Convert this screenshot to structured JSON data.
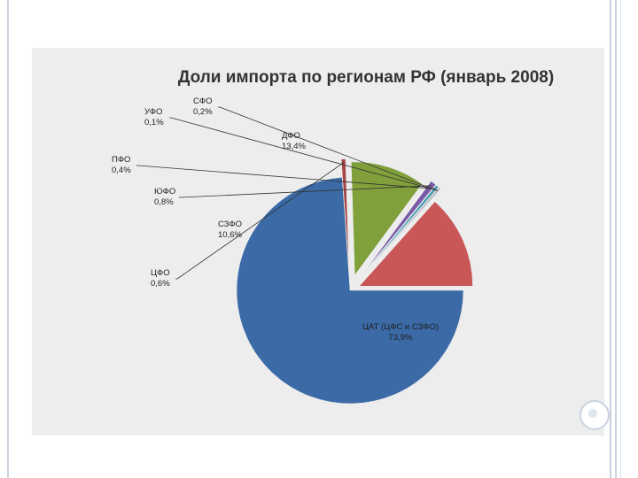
{
  "chart_data": {
    "type": "pie",
    "title": "Доли импорта по регионам РФ (январь 2008)",
    "slices": [
      {
        "label": "ЦАТ (ЦФС и СЗФО)",
        "value_text": "73,9%",
        "value": 73.9,
        "color": "#3b6aa6"
      },
      {
        "label": "ЦФО",
        "value_text": "0,6%",
        "value": 0.6,
        "color": "#a64545"
      },
      {
        "label": "СЗФО",
        "value_text": "10,6%",
        "value": 10.6,
        "color": "#80a03c"
      },
      {
        "label": "ЮФО",
        "value_text": "0,8%",
        "value": 0.8,
        "color": "#7a5aa6"
      },
      {
        "label": "ПФО",
        "value_text": "0,4%",
        "value": 0.4,
        "color": "#3f9cb5"
      },
      {
        "label": "УФО",
        "value_text": "0,1%",
        "value": 0.1,
        "color": "#e68a3e"
      },
      {
        "label": "СФО",
        "value_text": "0,2%",
        "value": 0.2,
        "color": "#8fa8cc"
      },
      {
        "label": "ДФО",
        "value_text": "13,4%",
        "value": 13.4,
        "color": "#c95757"
      }
    ],
    "legend": "none"
  }
}
